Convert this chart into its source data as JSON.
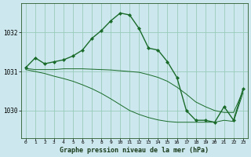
{
  "title": "Graphe pression niveau de la mer (hPa)",
  "background_color": "#cce8ee",
  "grid_color": "#99ccbb",
  "line_color": "#1a6b2a",
  "series": {
    "line1": {
      "x": [
        0,
        1,
        2,
        3,
        4,
        5,
        6,
        7,
        8,
        9,
        10,
        11,
        12,
        13,
        14,
        15,
        16,
        17,
        18,
        19,
        20,
        21,
        22,
        23
      ],
      "y": [
        1031.1,
        1031.35,
        1031.2,
        1031.25,
        1031.3,
        1031.4,
        1031.55,
        1031.85,
        1032.05,
        1032.3,
        1032.5,
        1032.45,
        1032.1,
        1031.6,
        1031.55,
        1031.25,
        1030.85,
        1030.0,
        1029.75,
        1029.75,
        1029.7,
        1030.1,
        1029.75,
        1030.55
      ],
      "marker": "D",
      "markersize": 2.0,
      "linewidth": 1.0
    },
    "line2": {
      "x": [
        0,
        1,
        2,
        3,
        4,
        5,
        6,
        7,
        8,
        9,
        10,
        11,
        12,
        13,
        14,
        15,
        16,
        17,
        18,
        19,
        20,
        21,
        22,
        23
      ],
      "y": [
        1031.08,
        1031.05,
        1031.05,
        1031.05,
        1031.07,
        1031.07,
        1031.07,
        1031.06,
        1031.05,
        1031.04,
        1031.02,
        1031.0,
        1030.98,
        1030.92,
        1030.85,
        1030.75,
        1030.6,
        1030.42,
        1030.22,
        1030.1,
        1030.0,
        1029.95,
        1029.95,
        1030.5
      ],
      "marker": "None",
      "linewidth": 0.7
    },
    "line3": {
      "x": [
        0,
        1,
        2,
        3,
        4,
        5,
        6,
        7,
        8,
        9,
        10,
        11,
        12,
        13,
        14,
        15,
        16,
        17,
        18,
        19,
        20,
        21,
        22,
        23
      ],
      "y": [
        1031.05,
        1031.0,
        1030.95,
        1030.88,
        1030.82,
        1030.75,
        1030.66,
        1030.56,
        1030.44,
        1030.3,
        1030.15,
        1030.0,
        1029.9,
        1029.82,
        1029.76,
        1029.72,
        1029.7,
        1029.7,
        1029.7,
        1029.7,
        1029.7,
        1029.75,
        1029.72,
        1030.45
      ],
      "marker": "None",
      "linewidth": 0.7
    }
  },
  "yticks": [
    1030,
    1031,
    1032
  ],
  "ylim": [
    1029.3,
    1032.75
  ],
  "xlim": [
    -0.5,
    23.5
  ],
  "xticks": [
    0,
    1,
    2,
    3,
    4,
    5,
    6,
    7,
    8,
    9,
    10,
    11,
    12,
    13,
    14,
    15,
    16,
    17,
    18,
    19,
    20,
    21,
    22,
    23
  ]
}
